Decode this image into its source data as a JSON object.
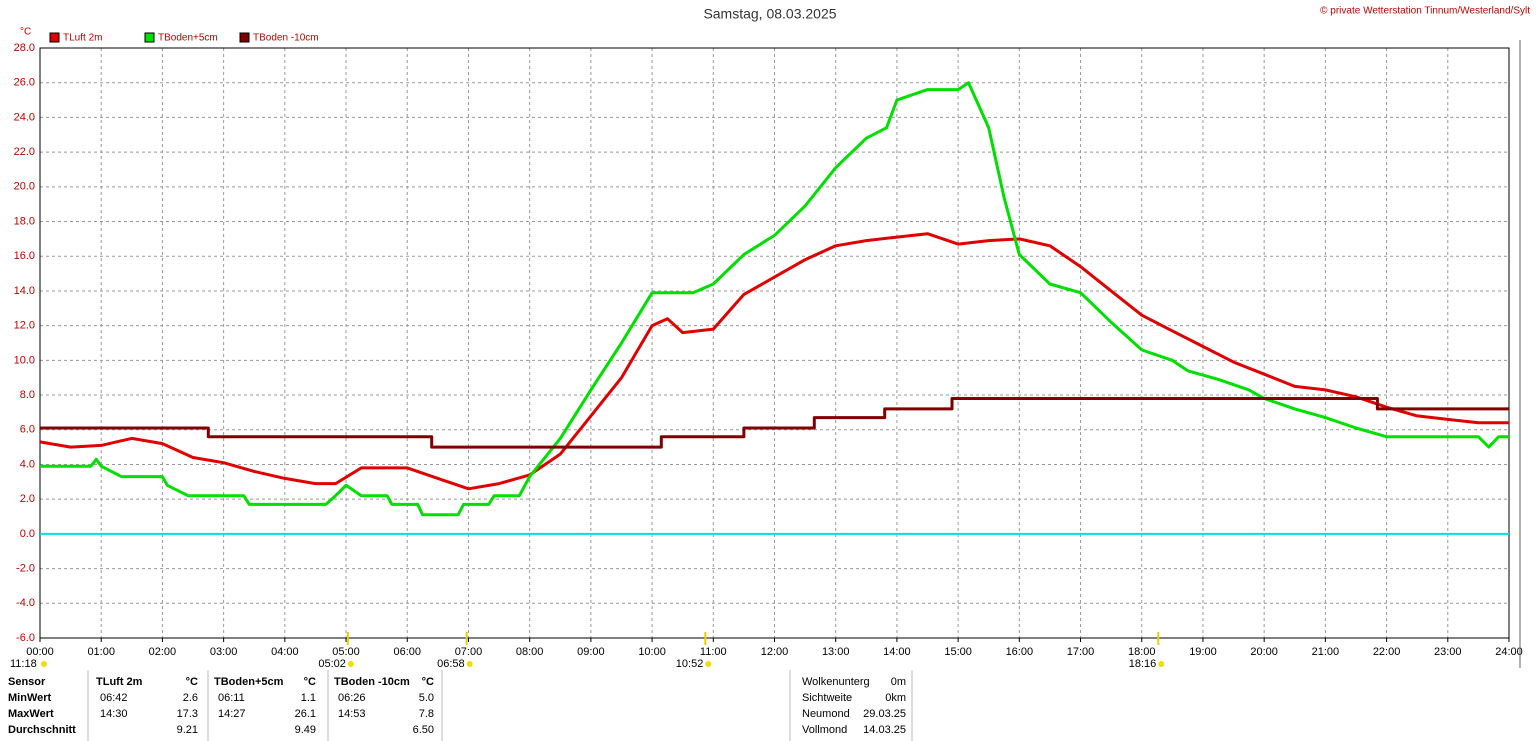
{
  "chart_data": {
    "type": "line",
    "title": "Samstag, 08.03.2025",
    "copyright": "© private Wetterstation Tinnum/Westerland/Sylt",
    "y_unit": "°C",
    "grid": true,
    "reference_line": {
      "value": 0,
      "color": "#00e0e0"
    },
    "xlim": [
      0,
      24
    ],
    "xticks": [
      {
        "value": 0,
        "label": "00:00"
      },
      {
        "value": 1,
        "label": "01:00"
      },
      {
        "value": 2,
        "label": "02:00"
      },
      {
        "value": 3,
        "label": "03:00"
      },
      {
        "value": 4,
        "label": "04:00"
      },
      {
        "value": 5,
        "label": "05:00"
      },
      {
        "value": 6,
        "label": "06:00"
      },
      {
        "value": 7,
        "label": "07:00"
      },
      {
        "value": 8,
        "label": "08:00"
      },
      {
        "value": 9,
        "label": "09:00"
      },
      {
        "value": 10,
        "label": "10:00"
      },
      {
        "value": 11,
        "label": "11:00"
      },
      {
        "value": 12,
        "label": "12:00"
      },
      {
        "value": 13,
        "label": "13:00"
      },
      {
        "value": 14,
        "label": "14:00"
      },
      {
        "value": 15,
        "label": "15:00"
      },
      {
        "value": 16,
        "label": "16:00"
      },
      {
        "value": 17,
        "label": "17:00"
      },
      {
        "value": 18,
        "label": "18:00"
      },
      {
        "value": 19,
        "label": "19:00"
      },
      {
        "value": 20,
        "label": "20:00"
      },
      {
        "value": 21,
        "label": "21:00"
      },
      {
        "value": 22,
        "label": "22:00"
      },
      {
        "value": 23,
        "label": "23:00"
      },
      {
        "value": 24,
        "label": "24:00"
      }
    ],
    "ylim": [
      -6,
      28
    ],
    "yticks": [
      {
        "value": 28,
        "label": "28.0"
      },
      {
        "value": 26,
        "label": "26.0"
      },
      {
        "value": 24,
        "label": "24.0"
      },
      {
        "value": 22,
        "label": "22.0"
      },
      {
        "value": 20,
        "label": "20.0"
      },
      {
        "value": 18,
        "label": "18.0"
      },
      {
        "value": 16,
        "label": "16.0"
      },
      {
        "value": 14,
        "label": "14.0"
      },
      {
        "value": 12,
        "label": "12.0"
      },
      {
        "value": 10,
        "label": "10.0"
      },
      {
        "value": 8,
        "label": "8.0"
      },
      {
        "value": 6,
        "label": "6.0"
      },
      {
        "value": 4,
        "label": "4.0"
      },
      {
        "value": 2,
        "label": "2.0"
      },
      {
        "value": 0,
        "label": "0.0"
      },
      {
        "value": -2,
        "label": "-2.0"
      },
      {
        "value": -4,
        "label": "-4.0"
      },
      {
        "value": -6,
        "label": "-6.0"
      }
    ],
    "series": [
      {
        "name": "TLuft 2m",
        "color": "#e00000",
        "x": [
          0,
          0.5,
          1,
          1.5,
          2,
          2.5,
          3,
          3.5,
          4,
          4.5,
          4.83,
          5.25,
          6,
          6.5,
          7,
          7.5,
          8,
          8.5,
          9,
          9.5,
          10,
          10.25,
          10.5,
          11,
          11.5,
          12,
          12.5,
          13,
          13.5,
          14,
          14.5,
          15,
          15.5,
          16,
          16.5,
          17,
          17.5,
          18,
          18.5,
          19,
          19.5,
          20,
          20.5,
          21,
          21.5,
          22,
          22.5,
          23,
          23.5,
          24
        ],
        "values": [
          5.3,
          5.0,
          5.1,
          5.5,
          5.2,
          4.4,
          4.1,
          3.6,
          3.2,
          2.9,
          2.9,
          3.8,
          3.8,
          3.2,
          2.6,
          2.9,
          3.4,
          4.6,
          6.8,
          9.0,
          12.0,
          12.4,
          11.6,
          11.8,
          13.8,
          14.8,
          15.8,
          16.6,
          16.9,
          17.1,
          17.3,
          16.7,
          16.9,
          17.0,
          16.6,
          15.4,
          14.0,
          12.6,
          11.7,
          10.8,
          9.9,
          9.2,
          8.5,
          8.3,
          7.9,
          7.3,
          6.8,
          6.6,
          6.4,
          6.4
        ]
      },
      {
        "name": "TBoden+5cm",
        "color": "#00e000",
        "x": [
          0,
          0.83,
          0.92,
          1,
          1.33,
          2,
          2.08,
          2.42,
          3.33,
          3.42,
          4.67,
          4.83,
          5,
          5.25,
          5.67,
          5.75,
          6.17,
          6.25,
          6.83,
          6.92,
          7.33,
          7.42,
          7.83,
          8,
          8.5,
          9,
          9.5,
          10,
          10.67,
          11,
          11.5,
          12,
          12.5,
          13,
          13.5,
          13.83,
          14,
          14.5,
          15,
          15.17,
          15.5,
          15.75,
          16,
          16.5,
          17,
          17.5,
          18,
          18.5,
          18.75,
          19.25,
          19.75,
          20,
          20.5,
          21,
          21.5,
          22,
          23.5,
          23.67,
          23.83,
          24
        ],
        "values": [
          3.9,
          3.9,
          4.3,
          3.9,
          3.3,
          3.3,
          2.8,
          2.2,
          2.2,
          1.7,
          1.7,
          2.2,
          2.8,
          2.2,
          2.2,
          1.7,
          1.7,
          1.1,
          1.1,
          1.7,
          1.7,
          2.2,
          2.2,
          3.3,
          5.5,
          8.3,
          11.0,
          13.9,
          13.9,
          14.4,
          16.1,
          17.2,
          18.9,
          21.1,
          22.8,
          23.4,
          25.0,
          25.6,
          25.6,
          26.0,
          23.4,
          19.4,
          16.1,
          14.4,
          13.9,
          12.2,
          10.6,
          10.0,
          9.4,
          8.9,
          8.3,
          7.8,
          7.2,
          6.7,
          6.1,
          5.6,
          5.6,
          5.0,
          5.6,
          5.6
        ]
      },
      {
        "name": "TBoden -10cm",
        "color": "#800000",
        "x": [
          0,
          2.75,
          2.75,
          6.4,
          6.4,
          10.15,
          10.15,
          11.5,
          11.5,
          12.65,
          12.65,
          13.8,
          13.8,
          14.9,
          14.9,
          21.85,
          21.85,
          24
        ],
        "values": [
          6.1,
          6.1,
          5.6,
          5.6,
          5.0,
          5.0,
          5.6,
          5.6,
          6.1,
          6.1,
          6.7,
          6.7,
          7.2,
          7.2,
          7.8,
          7.8,
          7.2,
          7.2
        ]
      }
    ],
    "time_markers": [
      {
        "x": 5.03,
        "label": "05:02"
      },
      {
        "x": 6.97,
        "label": "06:58"
      },
      {
        "x": 10.87,
        "label": "10:52"
      },
      {
        "x": 18.27,
        "label": "18:16"
      }
    ],
    "left_marker_label": "11:18"
  },
  "stats": {
    "headers": [
      "Sensor",
      "TLuft 2m",
      "°C",
      "TBoden+5cm",
      "°C",
      "TBoden -10cm",
      "°C"
    ],
    "rows": [
      [
        "MinWert",
        "06:42",
        "2.6",
        "06:11",
        "1.1",
        "06:26",
        "5.0"
      ],
      [
        "MaxWert",
        "14:30",
        "17.3",
        "14:27",
        "26.1",
        "14:53",
        "7.8"
      ],
      [
        "Durchschnitt",
        "",
        "9.21",
        "",
        "9.49",
        "",
        "6.50"
      ]
    ]
  },
  "astro": [
    [
      "Wolkenunterg",
      "0m"
    ],
    [
      "Sichtweite",
      "0km"
    ],
    [
      "Neumond",
      "29.03.25"
    ],
    [
      "Vollmond",
      "14.03.25"
    ]
  ]
}
